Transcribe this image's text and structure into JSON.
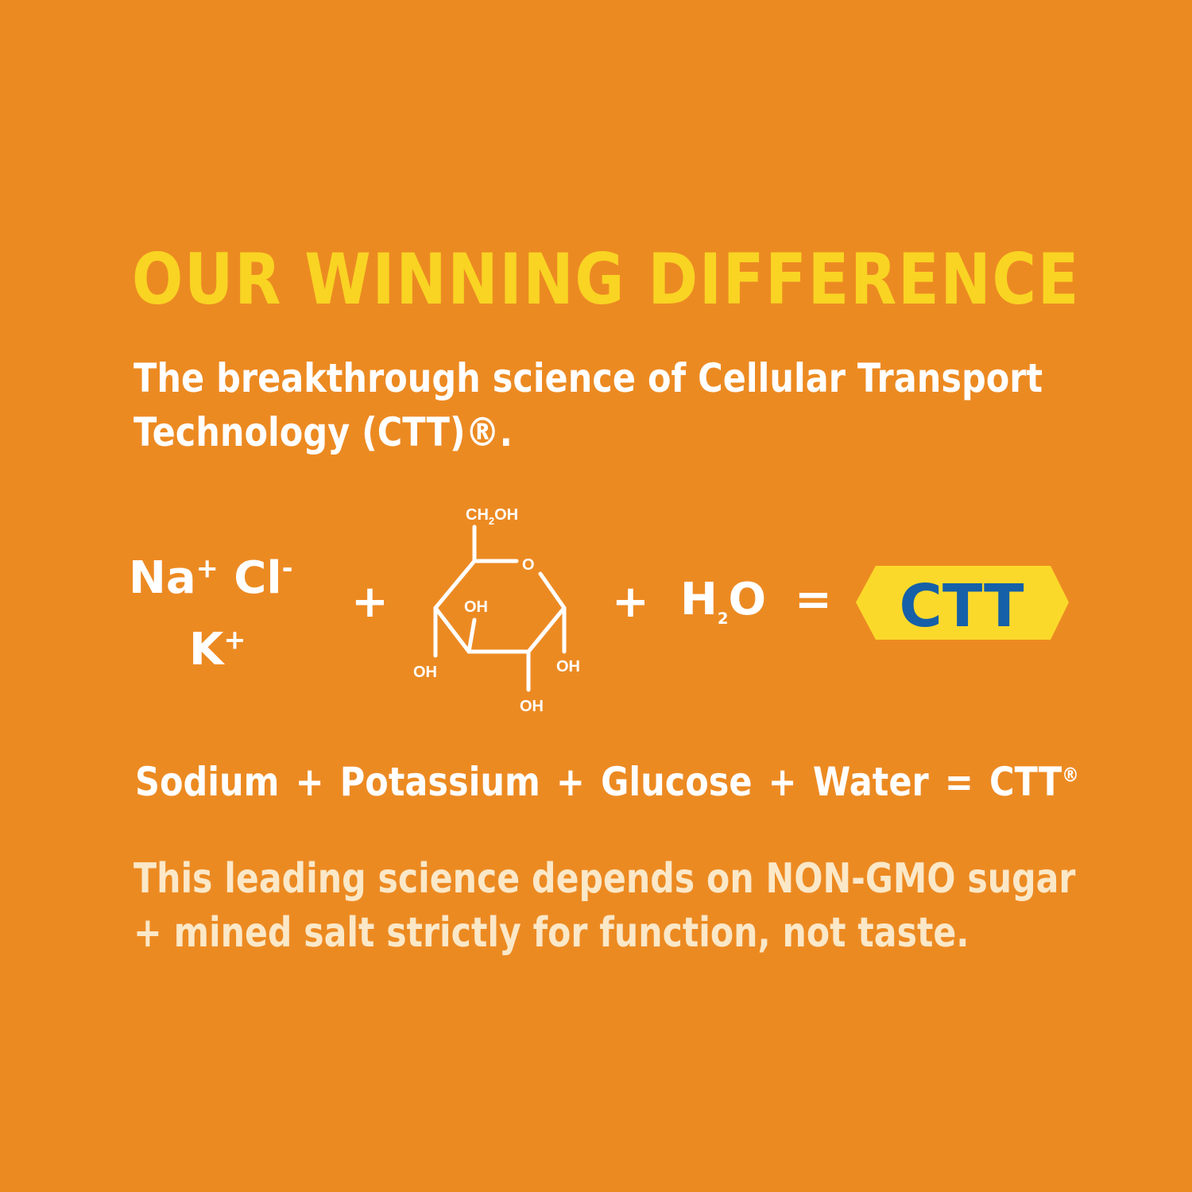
{
  "title": "OUR WINNING DIFFERENCE",
  "subtitle": {
    "line1": "The breakthrough science of Cellular Transport",
    "line2": "Technology (CTT)®."
  },
  "formula": {
    "na": "Na",
    "na_charge": "+",
    "cl": "Cl",
    "cl_charge": "-",
    "k": "K",
    "k_charge": "+",
    "plus": "+",
    "glucose": {
      "ch2oh_a": "CH",
      "ch2oh_sub": "2",
      "ch2oh_b": "OH",
      "o": "O",
      "oh": "OH"
    },
    "water_h": "H",
    "water_sub": "2",
    "water_o": "O",
    "equals": "=",
    "badge": "CTT"
  },
  "words": {
    "sodium": "Sodium",
    "potassium": "Potassium",
    "glucose": "Glucose",
    "water": "Water",
    "plus": "+",
    "equals": "=",
    "ctt": "CTT",
    "reg": "®"
  },
  "paragraph": {
    "line1": "This leading science depends on NON-GMO sugar",
    "line2": "+ mined salt strictly for function, not taste."
  },
  "colors": {
    "background": "#ec8a22",
    "title": "#f9d423",
    "badge_fill": "#fbd92a",
    "badge_text": "#1560a8",
    "text": "#ffffff"
  }
}
